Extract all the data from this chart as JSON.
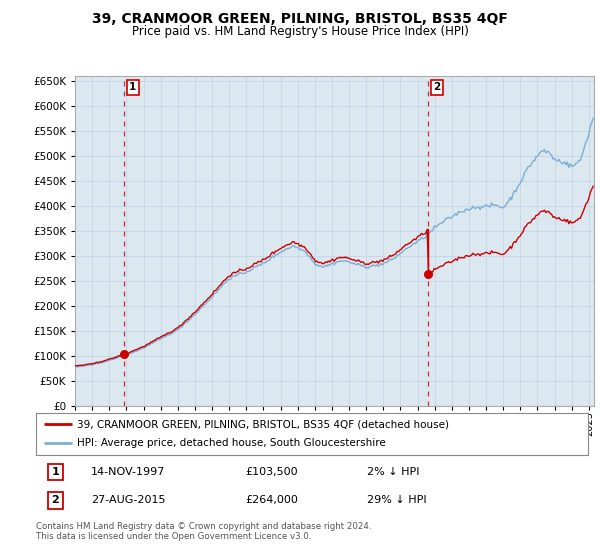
{
  "title": "39, CRANMOOR GREEN, PILNING, BRISTOL, BS35 4QF",
  "subtitle": "Price paid vs. HM Land Registry's House Price Index (HPI)",
  "ylim": [
    0,
    660000
  ],
  "yticks": [
    0,
    50000,
    100000,
    150000,
    200000,
    250000,
    300000,
    350000,
    400000,
    450000,
    500000,
    550000,
    600000,
    650000
  ],
  "hpi_color": "#7bafd4",
  "price_color": "#cc0000",
  "marker_color": "#cc0000",
  "dashed_color": "#cc0000",
  "grid_color": "#c8d8e8",
  "plot_bg_color": "#dce8f0",
  "background_color": "#ffffff",
  "purchase1_year": 1997.87,
  "purchase1_price": 103500,
  "purchase2_year": 2015.63,
  "purchase2_price": 264000,
  "legend1_label": "39, CRANMOOR GREEN, PILNING, BRISTOL, BS35 4QF (detached house)",
  "legend2_label": "HPI: Average price, detached house, South Gloucestershire",
  "note1_date": "14-NOV-1997",
  "note1_price": "£103,500",
  "note1_hpi": "2% ↓ HPI",
  "note2_date": "27-AUG-2015",
  "note2_price": "£264,000",
  "note2_hpi": "29% ↓ HPI",
  "footer": "Contains HM Land Registry data © Crown copyright and database right 2024.\nThis data is licensed under the Open Government Licence v3.0."
}
